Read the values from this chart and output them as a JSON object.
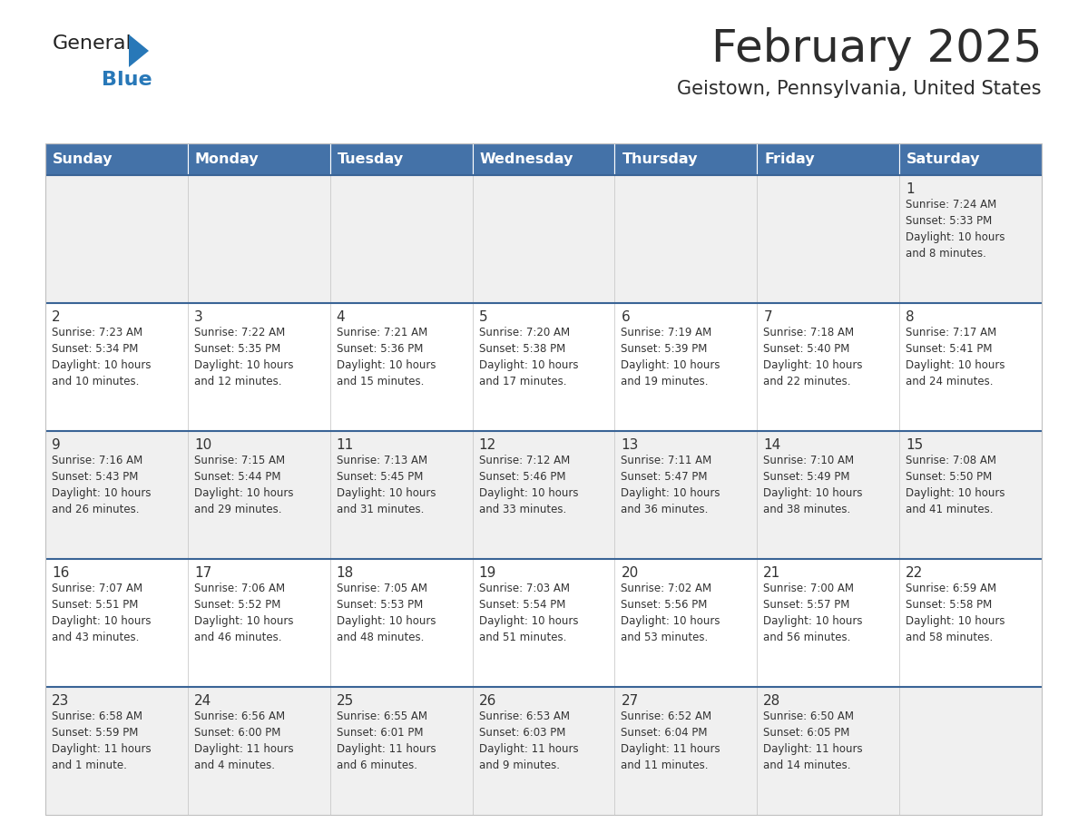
{
  "title": "February 2025",
  "subtitle": "Geistown, Pennsylvania, United States",
  "header_bg": "#4472a8",
  "header_text": "#ffffff",
  "day_names": [
    "Sunday",
    "Monday",
    "Tuesday",
    "Wednesday",
    "Thursday",
    "Friday",
    "Saturday"
  ],
  "row_bg_light": "#f0f0f0",
  "row_bg_white": "#ffffff",
  "separator_color": "#3a6496",
  "cell_border_color": "#c0c0c0",
  "text_color": "#333333",
  "calendar": [
    [
      null,
      null,
      null,
      null,
      null,
      null,
      {
        "day": "1",
        "sunrise": "7:24 AM",
        "sunset": "5:33 PM",
        "daylight": "10 hours\nand 8 minutes."
      }
    ],
    [
      {
        "day": "2",
        "sunrise": "7:23 AM",
        "sunset": "5:34 PM",
        "daylight": "10 hours\nand 10 minutes."
      },
      {
        "day": "3",
        "sunrise": "7:22 AM",
        "sunset": "5:35 PM",
        "daylight": "10 hours\nand 12 minutes."
      },
      {
        "day": "4",
        "sunrise": "7:21 AM",
        "sunset": "5:36 PM",
        "daylight": "10 hours\nand 15 minutes."
      },
      {
        "day": "5",
        "sunrise": "7:20 AM",
        "sunset": "5:38 PM",
        "daylight": "10 hours\nand 17 minutes."
      },
      {
        "day": "6",
        "sunrise": "7:19 AM",
        "sunset": "5:39 PM",
        "daylight": "10 hours\nand 19 minutes."
      },
      {
        "day": "7",
        "sunrise": "7:18 AM",
        "sunset": "5:40 PM",
        "daylight": "10 hours\nand 22 minutes."
      },
      {
        "day": "8",
        "sunrise": "7:17 AM",
        "sunset": "5:41 PM",
        "daylight": "10 hours\nand 24 minutes."
      }
    ],
    [
      {
        "day": "9",
        "sunrise": "7:16 AM",
        "sunset": "5:43 PM",
        "daylight": "10 hours\nand 26 minutes."
      },
      {
        "day": "10",
        "sunrise": "7:15 AM",
        "sunset": "5:44 PM",
        "daylight": "10 hours\nand 29 minutes."
      },
      {
        "day": "11",
        "sunrise": "7:13 AM",
        "sunset": "5:45 PM",
        "daylight": "10 hours\nand 31 minutes."
      },
      {
        "day": "12",
        "sunrise": "7:12 AM",
        "sunset": "5:46 PM",
        "daylight": "10 hours\nand 33 minutes."
      },
      {
        "day": "13",
        "sunrise": "7:11 AM",
        "sunset": "5:47 PM",
        "daylight": "10 hours\nand 36 minutes."
      },
      {
        "day": "14",
        "sunrise": "7:10 AM",
        "sunset": "5:49 PM",
        "daylight": "10 hours\nand 38 minutes."
      },
      {
        "day": "15",
        "sunrise": "7:08 AM",
        "sunset": "5:50 PM",
        "daylight": "10 hours\nand 41 minutes."
      }
    ],
    [
      {
        "day": "16",
        "sunrise": "7:07 AM",
        "sunset": "5:51 PM",
        "daylight": "10 hours\nand 43 minutes."
      },
      {
        "day": "17",
        "sunrise": "7:06 AM",
        "sunset": "5:52 PM",
        "daylight": "10 hours\nand 46 minutes."
      },
      {
        "day": "18",
        "sunrise": "7:05 AM",
        "sunset": "5:53 PM",
        "daylight": "10 hours\nand 48 minutes."
      },
      {
        "day": "19",
        "sunrise": "7:03 AM",
        "sunset": "5:54 PM",
        "daylight": "10 hours\nand 51 minutes."
      },
      {
        "day": "20",
        "sunrise": "7:02 AM",
        "sunset": "5:56 PM",
        "daylight": "10 hours\nand 53 minutes."
      },
      {
        "day": "21",
        "sunrise": "7:00 AM",
        "sunset": "5:57 PM",
        "daylight": "10 hours\nand 56 minutes."
      },
      {
        "day": "22",
        "sunrise": "6:59 AM",
        "sunset": "5:58 PM",
        "daylight": "10 hours\nand 58 minutes."
      }
    ],
    [
      {
        "day": "23",
        "sunrise": "6:58 AM",
        "sunset": "5:59 PM",
        "daylight": "11 hours\nand 1 minute."
      },
      {
        "day": "24",
        "sunrise": "6:56 AM",
        "sunset": "6:00 PM",
        "daylight": "11 hours\nand 4 minutes."
      },
      {
        "day": "25",
        "sunrise": "6:55 AM",
        "sunset": "6:01 PM",
        "daylight": "11 hours\nand 6 minutes."
      },
      {
        "day": "26",
        "sunrise": "6:53 AM",
        "sunset": "6:03 PM",
        "daylight": "11 hours\nand 9 minutes."
      },
      {
        "day": "27",
        "sunrise": "6:52 AM",
        "sunset": "6:04 PM",
        "daylight": "11 hours\nand 11 minutes."
      },
      {
        "day": "28",
        "sunrise": "6:50 AM",
        "sunset": "6:05 PM",
        "daylight": "11 hours\nand 14 minutes."
      },
      null
    ]
  ]
}
